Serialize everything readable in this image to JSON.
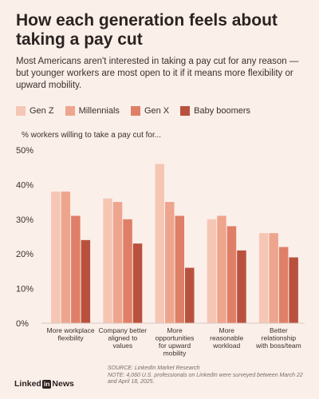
{
  "chart_data": {
    "type": "bar",
    "title": "How each generation feels about taking a pay cut",
    "subtitle": "Most Americans aren't interested in taking a pay cut for any reason — but younger workers are most open to it if it means more flexibility or upward mobility.",
    "ylabel": "% workers willing to take a pay cut for...",
    "xlabel": "",
    "ylim": [
      0,
      50
    ],
    "yticks": [
      "0%",
      "10%",
      "20%",
      "30%",
      "40%",
      "50%"
    ],
    "grid": false,
    "legend_position": "top",
    "categories": [
      "More workplace flexibility",
      "Company better aligned to values",
      "More opportunities for upward mobility",
      "More reasonable workload",
      "Better relationship with boss/team"
    ],
    "series": [
      {
        "name": "Gen Z",
        "color": "#f6c6b5",
        "values": [
          38,
          36,
          46,
          30,
          26
        ]
      },
      {
        "name": "Millennials",
        "color": "#eea58d",
        "values": [
          38,
          35,
          35,
          31,
          26
        ]
      },
      {
        "name": "Gen X",
        "color": "#df7f67",
        "values": [
          31,
          30,
          31,
          28,
          22
        ]
      },
      {
        "name": "Baby boomers",
        "color": "#b8523e",
        "values": [
          24,
          23,
          16,
          21,
          19
        ]
      }
    ]
  },
  "footer": {
    "source": "SOURCE: LinkedIn Market Research",
    "note": "NOTE: 4,060 U.S. professionals on LinkedIn were surveyed between March 22 and April 18, 2025.",
    "brand_prefix": "Linked",
    "brand_in": "in",
    "brand_suffix": "News"
  }
}
